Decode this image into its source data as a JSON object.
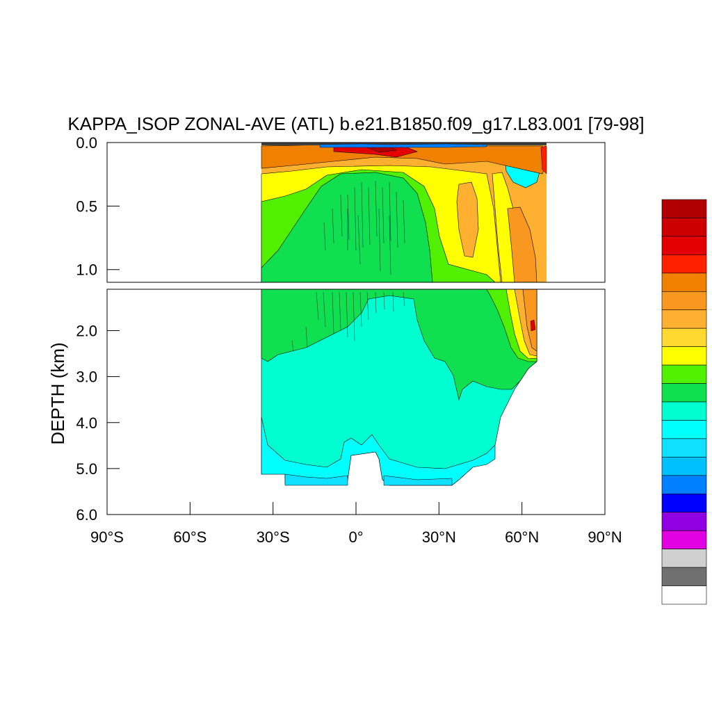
{
  "chart_data": {
    "type": "heatmap",
    "title": "KAPPA_ISOP ZONAL-AVE (ATL) b.e21.B1850.f09_g17.L83.001 [79-98]",
    "xlabel": "",
    "ylabel": "DEPTH (km)",
    "xlim": [
      -90,
      90
    ],
    "x_ticks": [
      {
        "value": -90,
        "label": "90°S"
      },
      {
        "value": -60,
        "label": "60°S"
      },
      {
        "value": -30,
        "label": "30°S"
      },
      {
        "value": 0,
        "label": "0°"
      },
      {
        "value": 30,
        "label": "30°N"
      },
      {
        "value": 60,
        "label": "60°N"
      },
      {
        "value": 90,
        "label": "90°N"
      }
    ],
    "panels": [
      {
        "name": "upper",
        "ylim": [
          0,
          1.1
        ],
        "y_ticks": [
          {
            "value": 0.0,
            "label": "0.0"
          },
          {
            "value": 0.5,
            "label": "0.5"
          },
          {
            "value": 1.0,
            "label": "1.0"
          }
        ]
      },
      {
        "name": "lower",
        "ylim": [
          1.1,
          6.0
        ],
        "y_ticks": [
          {
            "value": 2.0,
            "label": "2.0"
          },
          {
            "value": 3.0,
            "label": "3.0"
          },
          {
            "value": 4.0,
            "label": "4.0"
          },
          {
            "value": 5.0,
            "label": "5.0"
          },
          {
            "value": 6.0,
            "label": "6.0"
          }
        ]
      }
    ],
    "colorbar": [
      "#b00000",
      "#cc0000",
      "#e20000",
      "#ff2000",
      "#f08000",
      "#f89820",
      "#ffb030",
      "#ffd830",
      "#ffff00",
      "#50f000",
      "#10e050",
      "#00ffd0",
      "#00ffff",
      "#10e0ff",
      "#00c0ff",
      "#0080ff",
      "#0000ff",
      "#9000e0",
      "#e000e0",
      "#d0d0d0",
      "#707070",
      "#ffffff"
    ],
    "grid": false,
    "legend": "right"
  }
}
